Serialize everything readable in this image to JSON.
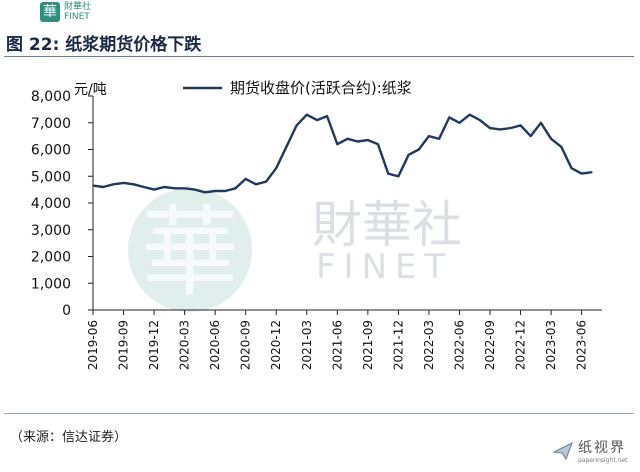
{
  "header": {
    "logo_mark": "華",
    "logo_text": "財華社\nFINET",
    "figure_title": "图 22:  纸浆期货价格下跌"
  },
  "footer": {
    "source": "（来源：信达证券）",
    "watermark_text": "纸视界",
    "watermark_sub": "paperinsight.net"
  },
  "chart_watermark": {
    "glyph": "華",
    "cn": "財華社",
    "en": "FINET"
  },
  "chart_data": {
    "type": "line",
    "title": "",
    "ylabel": "元/吨",
    "xlabel": "",
    "ylim": [
      0,
      8000
    ],
    "yticks": [
      0,
      1000,
      2000,
      3000,
      4000,
      5000,
      6000,
      7000,
      8000
    ],
    "ytick_labels": [
      "0",
      "1,000",
      "2,000",
      "3,000",
      "4,000",
      "5,000",
      "6,000",
      "7,000",
      "8,000"
    ],
    "x_range": [
      "2019-06",
      "2023-08"
    ],
    "xticks": [
      "2019-06",
      "2019-09",
      "2019-12",
      "2020-03",
      "2020-06",
      "2020-09",
      "2020-12",
      "2021-03",
      "2021-06",
      "2021-09",
      "2021-12",
      "2022-03",
      "2022-06",
      "2022-09",
      "2022-12",
      "2023-03",
      "2023-06"
    ],
    "legend_position": "top-center",
    "grid": false,
    "series": [
      {
        "name": "期货收盘价(活跃合约):纸浆",
        "color": "#1f3a5f",
        "x": [
          "2019-06",
          "2019-07",
          "2019-08",
          "2019-09",
          "2019-10",
          "2019-11",
          "2019-12",
          "2020-01",
          "2020-02",
          "2020-03",
          "2020-04",
          "2020-05",
          "2020-06",
          "2020-07",
          "2020-08",
          "2020-09",
          "2020-10",
          "2020-11",
          "2020-12",
          "2021-01",
          "2021-02",
          "2021-03",
          "2021-04",
          "2021-05",
          "2021-06",
          "2021-07",
          "2021-08",
          "2021-09",
          "2021-10",
          "2021-11",
          "2021-12",
          "2022-01",
          "2022-02",
          "2022-03",
          "2022-04",
          "2022-05",
          "2022-06",
          "2022-07",
          "2022-08",
          "2022-09",
          "2022-10",
          "2022-11",
          "2022-12",
          "2023-01",
          "2023-02",
          "2023-03",
          "2023-04",
          "2023-05",
          "2023-06",
          "2023-07"
        ],
        "values": [
          4650,
          4600,
          4700,
          4750,
          4700,
          4600,
          4500,
          4600,
          4550,
          4550,
          4500,
          4400,
          4450,
          4450,
          4550,
          4900,
          4700,
          4800,
          5300,
          6100,
          6900,
          7300,
          7100,
          7250,
          6200,
          6400,
          6300,
          6350,
          6200,
          5100,
          5000,
          5800,
          6000,
          6500,
          6400,
          7200,
          7000,
          7300,
          7100,
          6800,
          6750,
          6800,
          6900,
          6500,
          7000,
          6400,
          6100,
          5300,
          5100,
          5150
        ]
      }
    ]
  }
}
